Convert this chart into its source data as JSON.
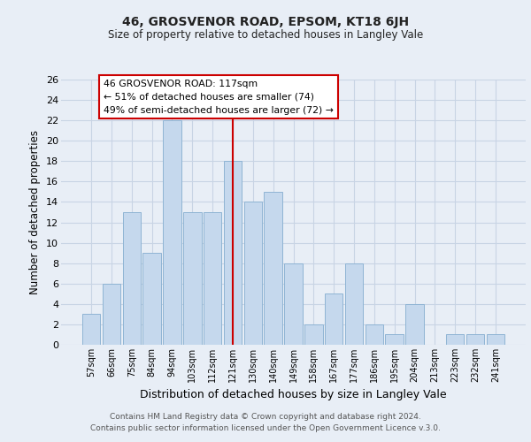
{
  "title1": "46, GROSVENOR ROAD, EPSOM, KT18 6JH",
  "title2": "Size of property relative to detached houses in Langley Vale",
  "xlabel": "Distribution of detached houses by size in Langley Vale",
  "ylabel": "Number of detached properties",
  "categories": [
    "57sqm",
    "66sqm",
    "75sqm",
    "84sqm",
    "94sqm",
    "103sqm",
    "112sqm",
    "121sqm",
    "130sqm",
    "140sqm",
    "149sqm",
    "158sqm",
    "167sqm",
    "177sqm",
    "186sqm",
    "195sqm",
    "204sqm",
    "213sqm",
    "223sqm",
    "232sqm",
    "241sqm"
  ],
  "values": [
    3,
    6,
    13,
    9,
    22,
    13,
    13,
    18,
    14,
    15,
    8,
    2,
    5,
    8,
    2,
    1,
    4,
    0,
    1,
    1,
    1
  ],
  "bar_color": "#c5d8ed",
  "bar_edge_color": "#8fb4d4",
  "vline_index": 7,
  "annotation_line1": "46 GROSVENOR ROAD: 117sqm",
  "annotation_line2": "← 51% of detached houses are smaller (74)",
  "annotation_line3": "49% of semi-detached houses are larger (72) →",
  "annotation_box_color": "#ffffff",
  "annotation_box_edge": "#cc0000",
  "vline_color": "#cc0000",
  "grid_color": "#c8d4e4",
  "background_color": "#e8eef6",
  "footer1": "Contains HM Land Registry data © Crown copyright and database right 2024.",
  "footer2": "Contains public sector information licensed under the Open Government Licence v.3.0.",
  "ylim": [
    0,
    26
  ],
  "yticks": [
    0,
    2,
    4,
    6,
    8,
    10,
    12,
    14,
    16,
    18,
    20,
    22,
    24,
    26
  ]
}
